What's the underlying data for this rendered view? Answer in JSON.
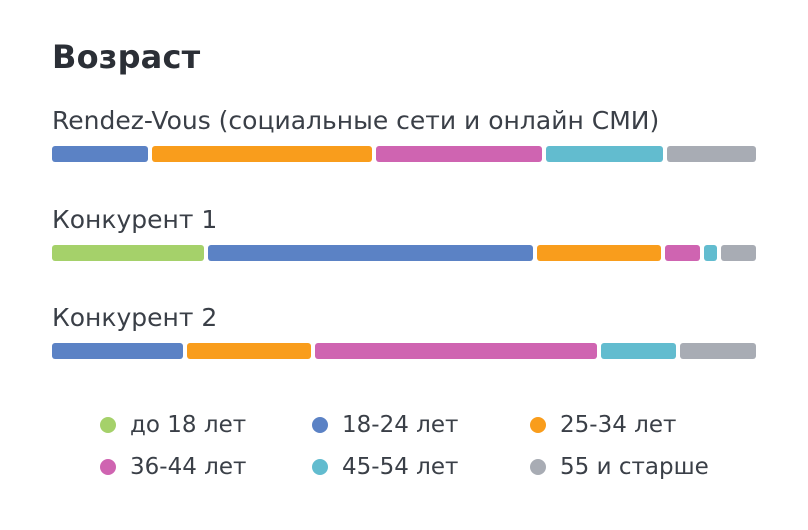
{
  "title": "Возраст",
  "chart_data": {
    "type": "bar",
    "orientation": "horizontal",
    "stacked": true,
    "percent_normalized": true,
    "categories": [
      "Rendez-Vous (социальные сети и онлайн СМИ)",
      "Конкурент 1",
      "Конкурент 2"
    ],
    "series": [
      {
        "name": "до 18 лет",
        "color": "#a5d16a",
        "values": [
          0,
          22,
          0
        ]
      },
      {
        "name": "18-24 лет",
        "color": "#5b82c5",
        "values": [
          14,
          47,
          19
        ]
      },
      {
        "name": "25-34 лет",
        "color": "#f99d1c",
        "values": [
          32,
          18,
          18
        ]
      },
      {
        "name": "36-44 лет",
        "color": "#cf64b1",
        "values": [
          24,
          5,
          41
        ]
      },
      {
        "name": "45-54 лет",
        "color": "#62bccf",
        "values": [
          17,
          2,
          11
        ]
      },
      {
        "name": "55 и старше",
        "color": "#a8acb4",
        "values": [
          13,
          5,
          11
        ]
      }
    ],
    "legend_position": "bottom",
    "grid": false
  }
}
